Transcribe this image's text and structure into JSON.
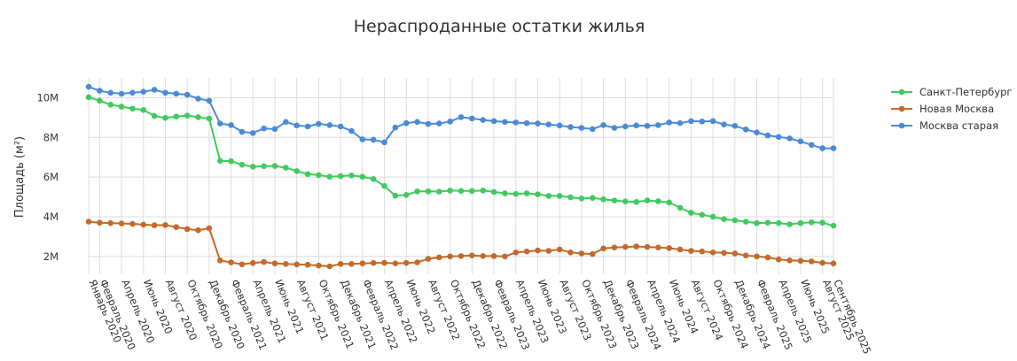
{
  "chart_data": {
    "type": "line",
    "title": "Нераспроданные остатки жилья",
    "ylabel": "Площадь (м²)",
    "xlabel": "",
    "ylim": [
      1.1,
      11.0
    ],
    "y_ticks": [
      2,
      4,
      6,
      8,
      10
    ],
    "y_tick_labels": [
      "2M",
      "4M",
      "6M",
      "8M",
      "10M"
    ],
    "x_tick_labels": [
      "Январь 2020",
      "Февраль 2020",
      "Апрель 2020",
      "Июнь 2020",
      "Август 2020",
      "Октябрь 2020",
      "Декабрь 2020",
      "Февраль 2021",
      "Апрель 2021",
      "Июнь 2021",
      "Август 2021",
      "Октябрь 2021",
      "Декабрь 2021",
      "Февраль 2022",
      "Апрель 2022",
      "Июнь 2022",
      "Август 2022",
      "Октябрь 2022",
      "Декабрь 2022",
      "Февраль 2023",
      "Апрель 2023",
      "Июнь 2023",
      "Август 2023",
      "Октябрь 2023",
      "Декабрь 2023",
      "Февраль 2024",
      "Апрель 2024",
      "Июнь 2024",
      "Август 2024",
      "Октябрь 2024",
      "Декабрь 2024",
      "Февраль 2025",
      "Апрель 2025",
      "Июнь 2025",
      "Август 2025",
      "Сентябрь 2025"
    ],
    "x_tick_months": [
      0,
      1,
      3,
      5,
      7,
      9,
      11,
      13,
      15,
      17,
      19,
      21,
      23,
      25,
      27,
      29,
      31,
      33,
      35,
      37,
      39,
      41,
      43,
      45,
      47,
      49,
      51,
      53,
      55,
      57,
      59,
      61,
      63,
      65,
      67,
      68
    ],
    "x_range_months": [
      0,
      68
    ],
    "grid": true,
    "legend_position": "top-right",
    "series": [
      {
        "name": "Санкт-Петербург",
        "color": "#3fcb5e",
        "values": [
          10.02,
          9.85,
          9.65,
          9.55,
          9.45,
          9.38,
          9.08,
          8.98,
          9.05,
          9.1,
          9.02,
          8.95,
          6.82,
          6.8,
          6.62,
          6.52,
          6.55,
          6.56,
          6.47,
          6.3,
          6.15,
          6.1,
          6.02,
          6.05,
          6.08,
          6.02,
          5.9,
          5.55,
          5.06,
          5.1,
          5.28,
          5.28,
          5.27,
          5.32,
          5.3,
          5.3,
          5.32,
          5.25,
          5.18,
          5.15,
          5.18,
          5.13,
          5.05,
          5.05,
          4.98,
          4.92,
          4.95,
          4.88,
          4.82,
          4.77,
          4.75,
          4.82,
          4.78,
          4.72,
          4.45,
          4.2,
          4.1,
          4.0,
          3.88,
          3.82,
          3.75,
          3.68,
          3.7,
          3.68,
          3.62,
          3.68,
          3.72,
          3.7,
          3.55
        ]
      },
      {
        "name": "Новая Москва",
        "color": "#c46a2a",
        "values": [
          3.75,
          3.7,
          3.68,
          3.66,
          3.64,
          3.6,
          3.57,
          3.58,
          3.48,
          3.38,
          3.32,
          3.42,
          1.8,
          1.7,
          1.6,
          1.67,
          1.72,
          1.65,
          1.62,
          1.6,
          1.58,
          1.54,
          1.5,
          1.62,
          1.62,
          1.65,
          1.67,
          1.68,
          1.65,
          1.67,
          1.7,
          1.88,
          1.95,
          2.0,
          2.02,
          2.05,
          2.02,
          2.02,
          2.0,
          2.2,
          2.25,
          2.3,
          2.28,
          2.35,
          2.2,
          2.15,
          2.12,
          2.4,
          2.45,
          2.48,
          2.5,
          2.48,
          2.45,
          2.42,
          2.35,
          2.28,
          2.25,
          2.2,
          2.18,
          2.15,
          2.05,
          2.0,
          1.95,
          1.85,
          1.8,
          1.78,
          1.75,
          1.68,
          1.65
        ]
      },
      {
        "name": "Москва старая",
        "color": "#4a8bd6",
        "values": [
          10.55,
          10.35,
          10.25,
          10.2,
          10.25,
          10.3,
          10.4,
          10.25,
          10.2,
          10.15,
          9.95,
          9.85,
          8.7,
          8.62,
          8.28,
          8.22,
          8.45,
          8.42,
          8.78,
          8.6,
          8.55,
          8.68,
          8.62,
          8.55,
          8.32,
          7.9,
          7.88,
          7.75,
          8.5,
          8.72,
          8.78,
          8.68,
          8.7,
          8.8,
          9.02,
          8.95,
          8.88,
          8.82,
          8.78,
          8.75,
          8.72,
          8.7,
          8.65,
          8.6,
          8.52,
          8.48,
          8.42,
          8.62,
          8.48,
          8.55,
          8.6,
          8.58,
          8.62,
          8.75,
          8.72,
          8.82,
          8.8,
          8.82,
          8.65,
          8.58,
          8.4,
          8.25,
          8.1,
          8.02,
          7.95,
          7.8,
          7.62,
          7.45,
          7.45
        ]
      }
    ]
  }
}
